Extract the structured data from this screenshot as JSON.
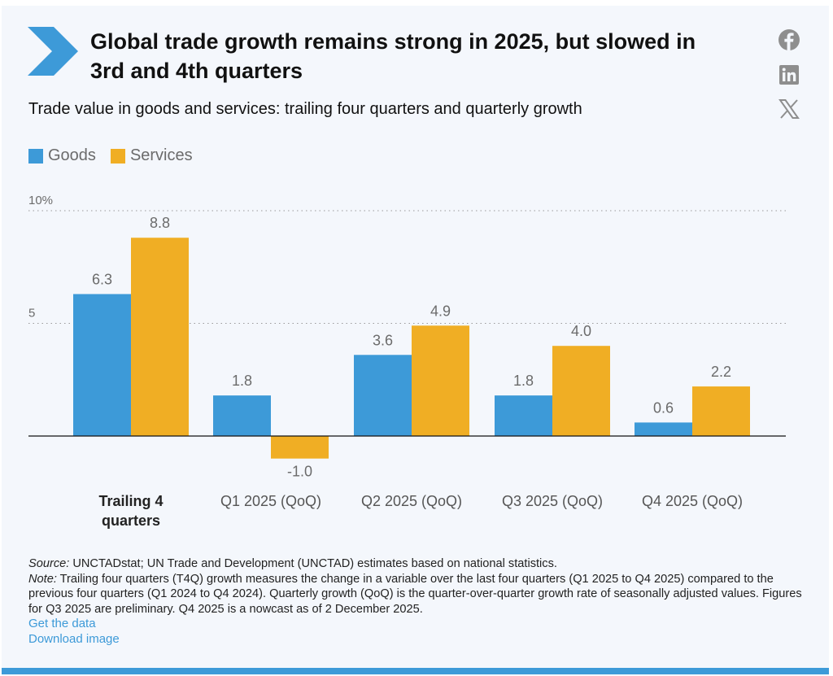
{
  "header": {
    "title": "Global trade growth remains strong in 2025, but slowed in 3rd and 4th quarters",
    "subtitle": "Trade value in goods and services: trailing four quarters and quarterly growth",
    "logo_icon": "chevron-right-icon"
  },
  "social": [
    {
      "name": "facebook",
      "icon": "facebook-icon"
    },
    {
      "name": "linkedin",
      "icon": "linkedin-icon"
    },
    {
      "name": "x",
      "icon": "x-twitter-icon"
    }
  ],
  "colors": {
    "goods": "#3d9ad8",
    "services": "#f0ae24",
    "accent": "#3d9ad8",
    "label": "#6b6b6b",
    "gridline": "#9a9a9a",
    "baseline": "#111111"
  },
  "legend": [
    {
      "label": "Goods",
      "color": "#3d9ad8"
    },
    {
      "label": "Services",
      "color": "#f0ae24"
    }
  ],
  "chart_data": {
    "type": "bar",
    "title": "Trade value in goods and services: trailing four quarters and quarterly growth",
    "categories": [
      "Trailing 4 quarters",
      "Q1 2025 (QoQ)",
      "Q2 2025 (QoQ)",
      "Q3 2025 (QoQ)",
      "Q4 2025 (QoQ)"
    ],
    "category_bold": [
      true,
      false,
      false,
      false,
      false
    ],
    "series": [
      {
        "name": "Goods",
        "color": "#3d9ad8",
        "values": [
          6.3,
          1.8,
          3.6,
          1.8,
          0.6
        ],
        "labels": [
          "6.3",
          "1.8",
          "3.6",
          "1.8",
          "0.6"
        ]
      },
      {
        "name": "Services",
        "color": "#f0ae24",
        "values": [
          8.8,
          -1.0,
          4.9,
          4.0,
          2.2
        ],
        "labels": [
          "8.8",
          "-1.0",
          "4.9",
          "4.0",
          "2.2"
        ]
      }
    ],
    "yticks": [
      {
        "value": 10,
        "label": "10%"
      },
      {
        "value": 5,
        "label": "5"
      }
    ],
    "ylim": [
      -1.5,
      10
    ],
    "xlabel": "",
    "ylabel": "",
    "grid": "dotted horizontal",
    "legend_position": "top-left"
  },
  "footer": {
    "source_label": "Source:",
    "source_text": " UNCTADstat; UN Trade and Development (UNCTAD) estimates based on national statistics.",
    "note_label": "Note:",
    "note_text": " Trailing four quarters (T4Q) growth measures the change in a variable over the last four quarters (Q1 2025 to Q4 2025) compared to the previous four quarters (Q1 2024 to Q4 2024). Quarterly growth (QoQ) is the quarter-over-quarter growth rate of seasonally adjusted values. Figures for Q3 2025 are preliminary. Q4 2025 is a nowcast as of 2 December 2025.",
    "links": [
      "Get the data",
      "Download image"
    ]
  }
}
